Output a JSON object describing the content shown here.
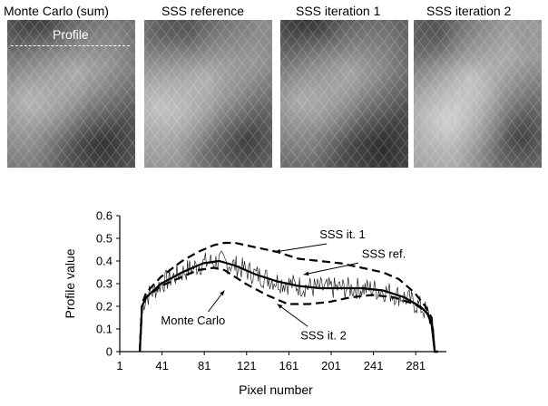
{
  "panels": [
    {
      "title": "Monte Carlo (sum)",
      "shade": 0.46,
      "dark_spots": [
        [
          0.3,
          0.05
        ],
        [
          0.75,
          0.85
        ]
      ],
      "light_spots": [
        [
          0.55,
          0.35
        ],
        [
          0.15,
          0.55
        ]
      ]
    },
    {
      "title": "SSS reference",
      "shade": 0.55,
      "dark_spots": [
        [
          0.35,
          0.08
        ],
        [
          0.8,
          0.82
        ]
      ],
      "light_spots": [
        [
          0.5,
          0.4
        ],
        [
          0.1,
          0.6
        ]
      ]
    },
    {
      "title": "SSS iteration 1",
      "shade": 0.4,
      "dark_spots": [
        [
          0.3,
          0.05
        ],
        [
          0.8,
          0.88
        ]
      ],
      "light_spots": [
        [
          0.55,
          0.35
        ],
        [
          0.15,
          0.55
        ]
      ]
    },
    {
      "title": "SSS iteration 2",
      "shade": 0.6,
      "dark_spots": [
        [
          0.2,
          0.1
        ],
        [
          0.85,
          0.8
        ]
      ],
      "light_spots": [
        [
          0.45,
          0.4
        ],
        [
          0.25,
          0.7
        ]
      ]
    }
  ],
  "profile_label": "Profile",
  "chart_data": {
    "type": "line",
    "xlabel": "Pixel number",
    "ylabel": "Profile value",
    "xlim": [
      1,
      310
    ],
    "ylim": [
      0,
      0.6
    ],
    "xticks": [
      1,
      41,
      81,
      121,
      161,
      201,
      241,
      281
    ],
    "yticks": [
      0,
      0.1,
      0.2,
      0.3,
      0.4,
      0.5,
      0.6
    ],
    "series": [
      {
        "name": "SSS ref.",
        "style": "solid-thick",
        "x": [
          20,
          22,
          26,
          40,
          60,
          80,
          95,
          110,
          130,
          150,
          170,
          190,
          210,
          230,
          250,
          270,
          285,
          292,
          296,
          299,
          302
        ],
        "y": [
          0,
          0.2,
          0.24,
          0.3,
          0.35,
          0.39,
          0.4,
          0.38,
          0.34,
          0.31,
          0.29,
          0.28,
          0.28,
          0.28,
          0.27,
          0.24,
          0.2,
          0.17,
          0.12,
          0,
          0
        ]
      },
      {
        "name": "SSS it. 1",
        "style": "dashed-thick",
        "x": [
          20,
          22,
          26,
          40,
          60,
          75,
          90,
          100,
          110,
          130,
          150,
          170,
          190,
          210,
          230,
          250,
          265,
          280,
          290,
          296,
          299,
          302
        ],
        "y": [
          0,
          0.21,
          0.26,
          0.33,
          0.4,
          0.44,
          0.47,
          0.48,
          0.48,
          0.46,
          0.44,
          0.41,
          0.4,
          0.39,
          0.37,
          0.35,
          0.32,
          0.26,
          0.2,
          0.15,
          0,
          0
        ]
      },
      {
        "name": "SSS it. 2",
        "style": "dashed-thick",
        "x": [
          20,
          22,
          26,
          40,
          60,
          75,
          90,
          100,
          110,
          120,
          140,
          160,
          180,
          200,
          220,
          240,
          260,
          280,
          290,
          296,
          299,
          302
        ],
        "y": [
          0,
          0.2,
          0.24,
          0.29,
          0.33,
          0.36,
          0.37,
          0.36,
          0.33,
          0.3,
          0.25,
          0.21,
          0.21,
          0.22,
          0.24,
          0.25,
          0.24,
          0.21,
          0.18,
          0.14,
          0,
          0
        ]
      },
      {
        "name": "Monte Carlo",
        "style": "solid-thin-noisy",
        "x_start": 22,
        "x_end": 298,
        "noise_amplitude": 0.05,
        "edges": [
          [
            20,
            0
          ],
          [
            22,
            0.2
          ],
          [
            298,
            0.12
          ],
          [
            299,
            0
          ]
        ]
      }
    ],
    "annotations": [
      {
        "text": "SSS it. 1",
        "x": 190,
        "y": 0.5,
        "target": [
          148,
          0.44
        ]
      },
      {
        "text": "SSS ref.",
        "x": 230,
        "y": 0.415,
        "target": [
          175,
          0.34
        ]
      },
      {
        "text": "Monte Carlo",
        "x": 40,
        "y": 0.12,
        "target": [
          100,
          0.27
        ]
      },
      {
        "text": "SSS it. 2",
        "x": 172,
        "y": 0.055,
        "target": [
          150,
          0.21
        ]
      }
    ]
  }
}
